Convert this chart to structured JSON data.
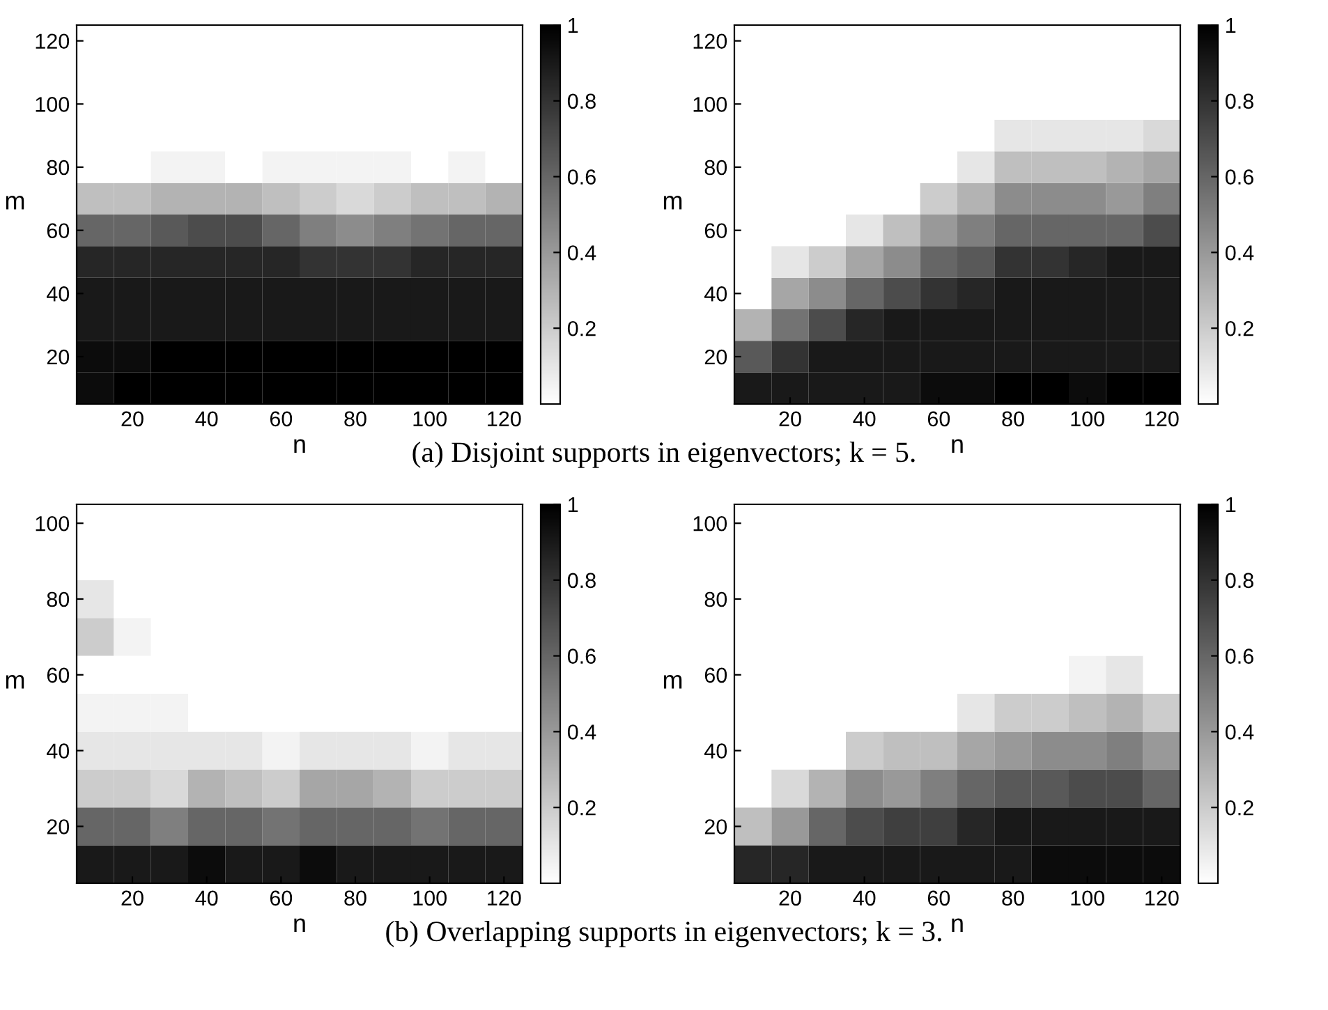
{
  "chart_data": [
    {
      "type": "heatmap",
      "xlabel": "n",
      "ylabel": "m",
      "clim": [
        0,
        1
      ],
      "cticks": [
        0.2,
        0.4,
        0.6,
        0.8,
        1
      ],
      "annotations": [
        "(a) Disjoint supports in eigenvectors; k = 5."
      ],
      "categories": [
        null,
        "20",
        null,
        "40",
        null,
        "60",
        null,
        "80",
        null,
        "100",
        null,
        "120"
      ],
      "y_categories": [
        "120",
        null,
        "100",
        null,
        "80",
        null,
        "60",
        null,
        "40",
        null,
        "20",
        null
      ],
      "cells": [
        [
          0,
          0,
          0,
          0,
          0,
          0,
          0,
          0,
          0,
          0,
          0,
          0
        ],
        [
          0,
          0,
          0,
          0,
          0,
          0,
          0,
          0,
          0,
          0,
          0,
          0
        ],
        [
          0,
          0,
          0,
          0,
          0,
          0,
          0,
          0,
          0,
          0,
          0,
          0
        ],
        [
          0,
          0,
          0,
          0,
          0,
          0,
          0,
          0,
          0,
          0,
          0,
          0
        ],
        [
          0,
          0,
          0.05,
          0.05,
          0,
          0.05,
          0.05,
          0.05,
          0.05,
          0,
          0.05,
          0
        ],
        [
          0.25,
          0.25,
          0.3,
          0.3,
          0.3,
          0.25,
          0.2,
          0.15,
          0.2,
          0.25,
          0.25,
          0.3
        ],
        [
          0.6,
          0.6,
          0.65,
          0.7,
          0.7,
          0.6,
          0.5,
          0.45,
          0.5,
          0.55,
          0.6,
          0.6
        ],
        [
          0.85,
          0.85,
          0.85,
          0.85,
          0.85,
          0.85,
          0.8,
          0.8,
          0.8,
          0.85,
          0.85,
          0.85
        ],
        [
          0.9,
          0.9,
          0.9,
          0.9,
          0.9,
          0.9,
          0.9,
          0.9,
          0.9,
          0.9,
          0.9,
          0.9
        ],
        [
          0.9,
          0.9,
          0.9,
          0.9,
          0.9,
          0.9,
          0.9,
          0.9,
          0.9,
          0.9,
          0.9,
          0.9
        ],
        [
          0.95,
          0.95,
          1,
          1,
          1,
          1,
          1,
          1,
          1,
          1,
          1,
          1
        ],
        [
          0.95,
          1,
          1,
          1,
          1,
          1,
          1,
          1,
          1,
          1,
          1,
          1
        ]
      ]
    },
    {
      "type": "heatmap",
      "xlabel": "n",
      "ylabel": "m",
      "clim": [
        0,
        1
      ],
      "cticks": [
        0.2,
        0.4,
        0.6,
        0.8,
        1
      ],
      "categories": [
        null,
        "20",
        null,
        "40",
        null,
        "60",
        null,
        "80",
        null,
        "100",
        null,
        "120"
      ],
      "y_categories": [
        "120",
        null,
        "100",
        null,
        "80",
        null,
        "60",
        null,
        "40",
        null,
        "20",
        null
      ],
      "cells": [
        [
          0,
          0,
          0,
          0,
          0,
          0,
          0,
          0,
          0,
          0,
          0,
          0
        ],
        [
          0,
          0,
          0,
          0,
          0,
          0,
          0,
          0,
          0,
          0,
          0,
          0
        ],
        [
          0,
          0,
          0,
          0,
          0,
          0,
          0,
          0,
          0,
          0,
          0,
          0
        ],
        [
          0,
          0,
          0,
          0,
          0,
          0,
          0,
          0.1,
          0.1,
          0.1,
          0.1,
          0.15
        ],
        [
          0,
          0,
          0,
          0,
          0,
          0,
          0.1,
          0.25,
          0.25,
          0.25,
          0.3,
          0.35
        ],
        [
          0,
          0,
          0,
          0,
          0,
          0.2,
          0.3,
          0.45,
          0.45,
          0.45,
          0.4,
          0.5
        ],
        [
          0,
          0,
          0,
          0.1,
          0.25,
          0.4,
          0.5,
          0.6,
          0.6,
          0.6,
          0.6,
          0.7
        ],
        [
          0,
          0.1,
          0.2,
          0.35,
          0.45,
          0.6,
          0.65,
          0.8,
          0.8,
          0.85,
          0.9,
          0.9
        ],
        [
          0,
          0.35,
          0.45,
          0.6,
          0.7,
          0.8,
          0.85,
          0.9,
          0.9,
          0.9,
          0.9,
          0.9
        ],
        [
          0.3,
          0.55,
          0.7,
          0.85,
          0.9,
          0.9,
          0.9,
          0.9,
          0.9,
          0.9,
          0.9,
          0.9
        ],
        [
          0.65,
          0.8,
          0.9,
          0.9,
          0.9,
          0.9,
          0.9,
          0.9,
          0.9,
          0.9,
          0.9,
          0.9
        ],
        [
          0.9,
          0.9,
          0.9,
          0.9,
          0.9,
          0.95,
          0.95,
          1,
          1,
          0.95,
          1,
          1
        ]
      ]
    },
    {
      "type": "heatmap",
      "xlabel": "n",
      "ylabel": "m",
      "clim": [
        0,
        1
      ],
      "cticks": [
        0.2,
        0.4,
        0.6,
        0.8,
        1
      ],
      "annotations": [
        "(b) Overlapping supports in eigenvectors; k = 3."
      ],
      "categories": [
        null,
        "20",
        null,
        "40",
        null,
        "60",
        null,
        "80",
        null,
        "100",
        null,
        "120"
      ],
      "y_categories": [
        "100",
        null,
        "80",
        null,
        "60",
        null,
        "40",
        null,
        "20",
        null
      ],
      "cells": [
        [
          0,
          0,
          0,
          0,
          0,
          0,
          0,
          0,
          0,
          0,
          0,
          0
        ],
        [
          0,
          0,
          0,
          0,
          0,
          0,
          0,
          0,
          0,
          0,
          0,
          0
        ],
        [
          0.1,
          0,
          0,
          0,
          0,
          0,
          0,
          0,
          0,
          0,
          0,
          0
        ],
        [
          0.2,
          0.05,
          0,
          0,
          0,
          0,
          0,
          0,
          0,
          0,
          0,
          0
        ],
        [
          0,
          0,
          0,
          0,
          0,
          0,
          0,
          0,
          0,
          0,
          0,
          0
        ],
        [
          0.05,
          0.05,
          0.05,
          0,
          0,
          0,
          0,
          0,
          0,
          0,
          0,
          0
        ],
        [
          0.1,
          0.1,
          0.1,
          0.1,
          0.1,
          0.05,
          0.1,
          0.1,
          0.1,
          0.05,
          0.1,
          0.1
        ],
        [
          0.2,
          0.2,
          0.15,
          0.3,
          0.25,
          0.2,
          0.35,
          0.35,
          0.3,
          0.2,
          0.2,
          0.2
        ],
        [
          0.6,
          0.6,
          0.5,
          0.6,
          0.6,
          0.55,
          0.6,
          0.6,
          0.6,
          0.55,
          0.6,
          0.6
        ],
        [
          0.9,
          0.9,
          0.9,
          0.95,
          0.9,
          0.9,
          0.95,
          0.9,
          0.9,
          0.9,
          0.9,
          0.9
        ]
      ]
    },
    {
      "type": "heatmap",
      "xlabel": "n",
      "ylabel": "m",
      "clim": [
        0,
        1
      ],
      "cticks": [
        0.2,
        0.4,
        0.6,
        0.8,
        1
      ],
      "categories": [
        null,
        "20",
        null,
        "40",
        null,
        "60",
        null,
        "80",
        null,
        "100",
        null,
        "120"
      ],
      "y_categories": [
        "100",
        null,
        "80",
        null,
        "60",
        null,
        "40",
        null,
        "20",
        null
      ],
      "cells": [
        [
          0,
          0,
          0,
          0,
          0,
          0,
          0,
          0,
          0,
          0,
          0,
          0
        ],
        [
          0,
          0,
          0,
          0,
          0,
          0,
          0,
          0,
          0,
          0,
          0,
          0
        ],
        [
          0,
          0,
          0,
          0,
          0,
          0,
          0,
          0,
          0,
          0,
          0,
          0
        ],
        [
          0,
          0,
          0,
          0,
          0,
          0,
          0,
          0,
          0,
          0,
          0,
          0
        ],
        [
          0,
          0,
          0,
          0,
          0,
          0,
          0,
          0,
          0,
          0.05,
          0.1,
          0
        ],
        [
          0,
          0,
          0,
          0,
          0,
          0,
          0.1,
          0.2,
          0.2,
          0.25,
          0.3,
          0.2
        ],
        [
          0,
          0,
          0,
          0.2,
          0.25,
          0.25,
          0.35,
          0.4,
          0.45,
          0.45,
          0.5,
          0.4
        ],
        [
          0,
          0.15,
          0.3,
          0.45,
          0.4,
          0.5,
          0.6,
          0.65,
          0.65,
          0.7,
          0.7,
          0.6
        ],
        [
          0.25,
          0.4,
          0.6,
          0.7,
          0.75,
          0.75,
          0.85,
          0.9,
          0.9,
          0.9,
          0.9,
          0.9
        ],
        [
          0.85,
          0.85,
          0.9,
          0.9,
          0.9,
          0.9,
          0.9,
          0.9,
          0.95,
          0.95,
          0.95,
          0.95
        ]
      ]
    }
  ]
}
